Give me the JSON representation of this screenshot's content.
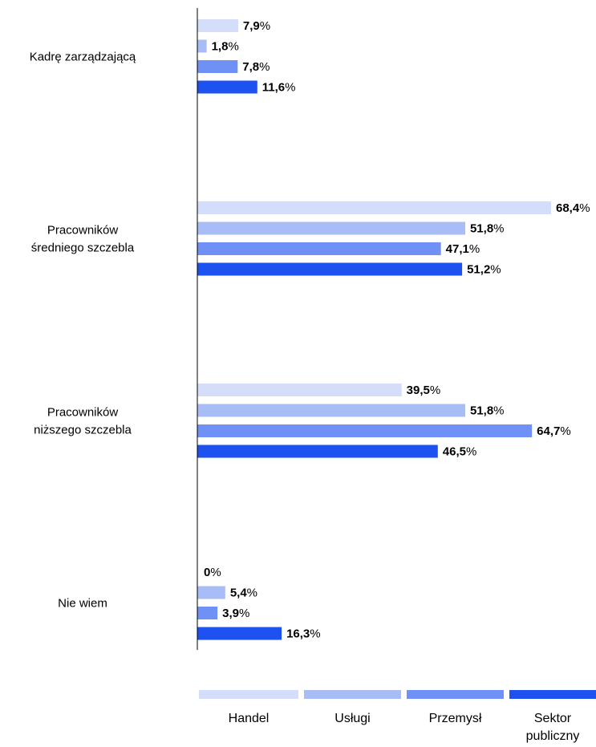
{
  "chart_data": {
    "type": "bar",
    "orientation": "horizontal",
    "categories": [
      [
        "Kadrę zarządzającą"
      ],
      [
        "Pracowników",
        "średniego szczebla"
      ],
      [
        "Pracowników",
        "niższego szczebla"
      ],
      [
        "Nie wiem"
      ]
    ],
    "series": [
      {
        "name": "Handel",
        "color": "#d4ddfa",
        "values": [
          7.9,
          68.4,
          39.5,
          0
        ],
        "labels": [
          "7,9",
          "68,4",
          "39,5",
          "0"
        ]
      },
      {
        "name": "Usługi",
        "color": "#a8bcf6",
        "values": [
          1.8,
          51.8,
          51.8,
          5.4
        ],
        "labels": [
          "1,8",
          "51,8",
          "51,8",
          "5,4"
        ]
      },
      {
        "name": "Przemysł",
        "color": "#6f90f4",
        "values": [
          7.8,
          47.1,
          64.7,
          3.9
        ],
        "labels": [
          "7,8",
          "47,1",
          "64,7",
          "3,9"
        ]
      },
      {
        "name": [
          "Sektor",
          "publiczny"
        ],
        "color": "#1e52f0",
        "values": [
          11.6,
          51.2,
          46.5,
          16.3
        ],
        "labels": [
          "11,6",
          "51,2",
          "46,5",
          "16,3"
        ]
      }
    ],
    "unit_suffix": "%",
    "xlim": [
      0,
      68.4
    ],
    "grid": false,
    "legend_position": "bottom"
  }
}
